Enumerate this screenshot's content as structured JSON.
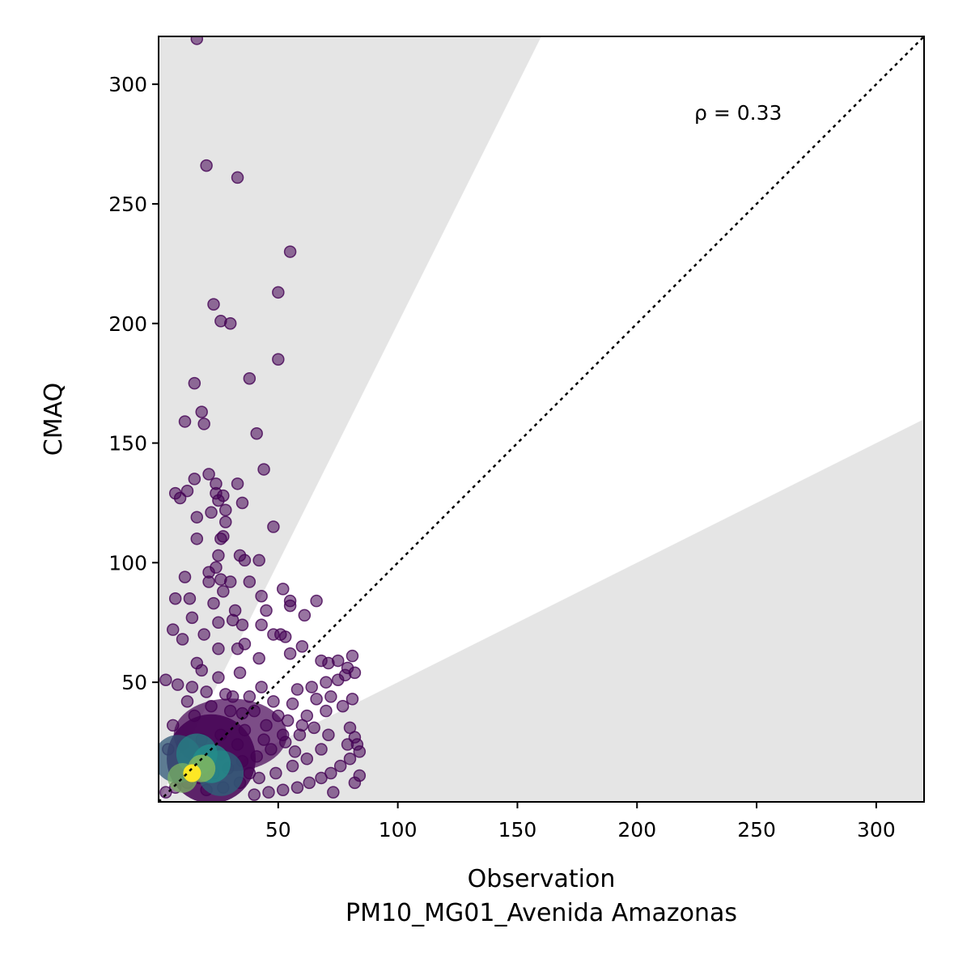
{
  "chart_data": {
    "type": "scatter",
    "title": "",
    "xlabel": "Observation",
    "xlabel_sub": "PM10_MG01_Avenida Amazonas",
    "ylabel": "CMAQ",
    "xlim": [
      0,
      320
    ],
    "ylim": [
      0,
      320
    ],
    "x_ticks": [
      50,
      100,
      150,
      200,
      250,
      300
    ],
    "y_ticks": [
      50,
      100,
      150,
      200,
      250,
      300
    ],
    "grid": false,
    "annotation": "ρ = 0.33",
    "one_to_one_line": true,
    "shaded_band": {
      "upper_slope": 2.0,
      "lower_slope": 0.5
    },
    "colormap": "viridis",
    "colors": {
      "low": "#440154",
      "mid": "#21918c",
      "high": "#fde725",
      "band": "#e5e5e5"
    },
    "points": [
      [
        16,
        319
      ],
      [
        20,
        266
      ],
      [
        33,
        261
      ],
      [
        55,
        230
      ],
      [
        50,
        213
      ],
      [
        23,
        208
      ],
      [
        26,
        201
      ],
      [
        30,
        200
      ],
      [
        50,
        185
      ],
      [
        15,
        175
      ],
      [
        38,
        177
      ],
      [
        18,
        163
      ],
      [
        11,
        159
      ],
      [
        19,
        158
      ],
      [
        41,
        154
      ],
      [
        44,
        139
      ],
      [
        21,
        137
      ],
      [
        15,
        135
      ],
      [
        33,
        133
      ],
      [
        24,
        133
      ],
      [
        12,
        130
      ],
      [
        7,
        129
      ],
      [
        24,
        129
      ],
      [
        27,
        128
      ],
      [
        9,
        127
      ],
      [
        25,
        126
      ],
      [
        35,
        125
      ],
      [
        28,
        122
      ],
      [
        16,
        119
      ],
      [
        22,
        121
      ],
      [
        28,
        117
      ],
      [
        48,
        115
      ],
      [
        27,
        111
      ],
      [
        26,
        110
      ],
      [
        16,
        110
      ],
      [
        34,
        103
      ],
      [
        25,
        103
      ],
      [
        42,
        101
      ],
      [
        36,
        101
      ],
      [
        24,
        98
      ],
      [
        21,
        96
      ],
      [
        11,
        94
      ],
      [
        26,
        93
      ],
      [
        30,
        92
      ],
      [
        21,
        92
      ],
      [
        38,
        92
      ],
      [
        52,
        89
      ],
      [
        27,
        88
      ],
      [
        55,
        84
      ],
      [
        43,
        86
      ],
      [
        66,
        84
      ],
      [
        7,
        85
      ],
      [
        13,
        85
      ],
      [
        55,
        82
      ],
      [
        23,
        83
      ],
      [
        32,
        80
      ],
      [
        45,
        80
      ],
      [
        14,
        77
      ],
      [
        61,
        78
      ],
      [
        31,
        76
      ],
      [
        25,
        75
      ],
      [
        35,
        74
      ],
      [
        43,
        74
      ],
      [
        6,
        72
      ],
      [
        10,
        68
      ],
      [
        19,
        70
      ],
      [
        48,
        70
      ],
      [
        51,
        70
      ],
      [
        53,
        69
      ],
      [
        36,
        66
      ],
      [
        60,
        65
      ],
      [
        25,
        64
      ],
      [
        33,
        64
      ],
      [
        42,
        60
      ],
      [
        55,
        62
      ],
      [
        16,
        58
      ],
      [
        68,
        59
      ],
      [
        71,
        58
      ],
      [
        75,
        59
      ],
      [
        81,
        61
      ],
      [
        79,
        56
      ],
      [
        78,
        53
      ],
      [
        82,
        54
      ],
      [
        75,
        51
      ],
      [
        3,
        51
      ],
      [
        8,
        49
      ],
      [
        14,
        48
      ],
      [
        20,
        46
      ],
      [
        28,
        45
      ],
      [
        38,
        44
      ],
      [
        48,
        42
      ],
      [
        56,
        41
      ],
      [
        66,
        43
      ],
      [
        72,
        44
      ],
      [
        81,
        43
      ],
      [
        77,
        40
      ],
      [
        70,
        38
      ],
      [
        62,
        36
      ],
      [
        54,
        34
      ],
      [
        45,
        32
      ],
      [
        36,
        30
      ],
      [
        26,
        28
      ],
      [
        18,
        26
      ],
      [
        10,
        24
      ],
      [
        4,
        22
      ],
      [
        80,
        31
      ],
      [
        82,
        27
      ],
      [
        83,
        24
      ],
      [
        84,
        21
      ],
      [
        80,
        18
      ],
      [
        76,
        15
      ],
      [
        72,
        12
      ],
      [
        68,
        10
      ],
      [
        63,
        8
      ],
      [
        58,
        6
      ],
      [
        52,
        5
      ],
      [
        46,
        4
      ],
      [
        40,
        3
      ],
      [
        73,
        4
      ],
      [
        82,
        8
      ],
      [
        84,
        11
      ],
      [
        79,
        24
      ],
      [
        71,
        28
      ],
      [
        65,
        31
      ],
      [
        59,
        28
      ],
      [
        53,
        25
      ],
      [
        47,
        22
      ],
      [
        41,
        19
      ],
      [
        35,
        17
      ],
      [
        29,
        14
      ],
      [
        23,
        12
      ],
      [
        17,
        10
      ],
      [
        12,
        8
      ],
      [
        7,
        6
      ],
      [
        3,
        4
      ],
      [
        15,
        36
      ],
      [
        22,
        40
      ],
      [
        30,
        38
      ],
      [
        40,
        38
      ],
      [
        50,
        36
      ],
      [
        60,
        32
      ],
      [
        68,
        22
      ],
      [
        62,
        18
      ],
      [
        56,
        15
      ],
      [
        49,
        12
      ],
      [
        42,
        10
      ],
      [
        34,
        8
      ],
      [
        27,
        6
      ],
      [
        20,
        5
      ],
      [
        33,
        24
      ],
      [
        44,
        26
      ],
      [
        38,
        12
      ],
      [
        26,
        20
      ],
      [
        31,
        44
      ],
      [
        43,
        48
      ],
      [
        58,
        47
      ],
      [
        25,
        52
      ],
      [
        34,
        54
      ],
      [
        18,
        55
      ],
      [
        12,
        42
      ],
      [
        6,
        32
      ],
      [
        64,
        48
      ],
      [
        70,
        50
      ],
      [
        35,
        37
      ],
      [
        52,
        28
      ],
      [
        57,
        21
      ]
    ],
    "density_core": [
      {
        "x": 14,
        "y": 12,
        "level": 1.0
      },
      {
        "x": 18,
        "y": 14,
        "level": 0.75
      },
      {
        "x": 10,
        "y": 10,
        "level": 0.7
      },
      {
        "x": 22,
        "y": 16,
        "level": 0.5
      },
      {
        "x": 16,
        "y": 20,
        "level": 0.45
      },
      {
        "x": 26,
        "y": 12,
        "level": 0.35
      },
      {
        "x": 8,
        "y": 18,
        "level": 0.3
      }
    ]
  }
}
